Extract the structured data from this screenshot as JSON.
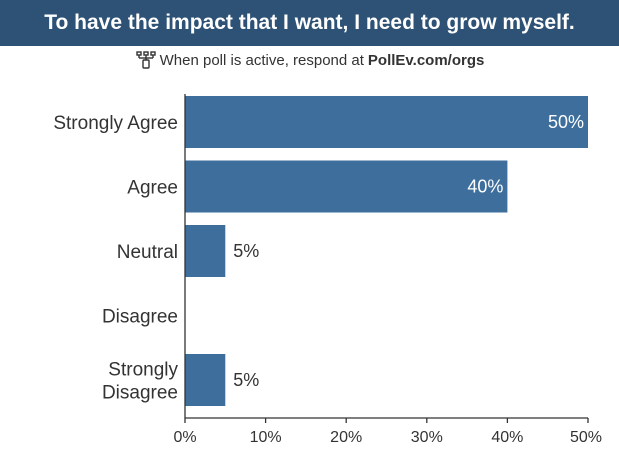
{
  "header": {
    "title": "To have the impact that I want, I need to grow myself.",
    "instruction": "When poll is active, respond at",
    "url": "PollEv.com/orgs",
    "icon": "poll-everywhere-icon"
  },
  "colors": {
    "title_bg": "#2d5275",
    "bar": "#3e6f9c",
    "axis": "#333333"
  },
  "chart_data": {
    "type": "bar",
    "orientation": "horizontal",
    "categories": [
      [
        "Strongly Agree"
      ],
      [
        "Agree"
      ],
      [
        "Neutral"
      ],
      [
        "Disagree"
      ],
      [
        "Strongly",
        "Disagree"
      ]
    ],
    "values": [
      50,
      40,
      5,
      0,
      5
    ],
    "value_labels": [
      "50%",
      "40%",
      "5%",
      "",
      "5%"
    ],
    "xlim": [
      0,
      50
    ],
    "x_ticks": [
      "0%",
      "10%",
      "20%",
      "30%",
      "40%",
      "50%"
    ],
    "grid": false,
    "legend": "none"
  }
}
